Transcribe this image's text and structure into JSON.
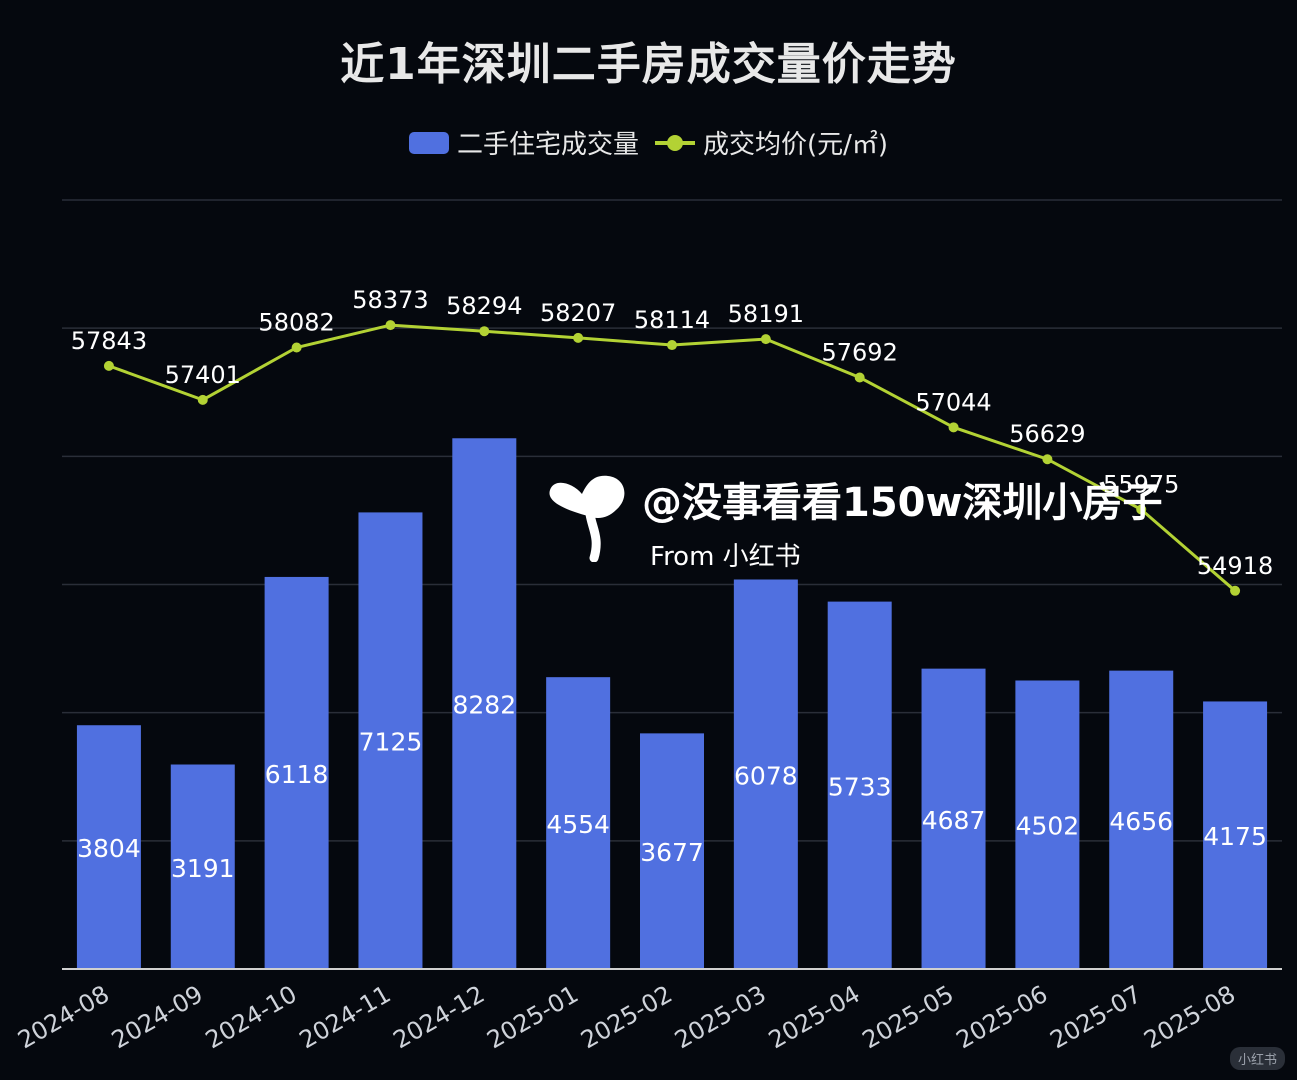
{
  "title": "近1年深圳二手房成交量价走势",
  "legend": {
    "volume_label": "二手住宅成交量",
    "price_label": "成交均价(元/㎡)"
  },
  "watermark": {
    "handle": "@没事看看150w深圳小房子",
    "from": "From 小红书"
  },
  "corner_badge": "小红书",
  "colors": {
    "background": "#05080e",
    "bar": "#5070e0",
    "line": "#b3d234",
    "grid": "#2a2e38",
    "axis": "#d0d0d0",
    "text": "#ffffff"
  },
  "chart_data": {
    "type": "bar+line",
    "categories": [
      "2024-08",
      "2024-09",
      "2024-10",
      "2024-11",
      "2024-12",
      "2025-01",
      "2025-02",
      "2025-03",
      "2025-04",
      "2025-05",
      "2025-06",
      "2025-07",
      "2025-08"
    ],
    "series": [
      {
        "name": "二手住宅成交量",
        "type": "bar",
        "values": [
          3804,
          3191,
          6118,
          7125,
          8282,
          4554,
          3677,
          6078,
          5733,
          4687,
          4502,
          4656,
          4175
        ]
      },
      {
        "name": "成交均价(元/㎡)",
        "type": "line",
        "values": [
          57843,
          57401,
          58082,
          58373,
          58294,
          58207,
          58114,
          58191,
          57692,
          57044,
          56629,
          55975,
          54918
        ]
      }
    ],
    "bar_axis_range": [
      0,
      12000
    ],
    "line_axis_range": [
      50000,
      60000
    ],
    "grid": true,
    "legend_position": "top-center"
  }
}
